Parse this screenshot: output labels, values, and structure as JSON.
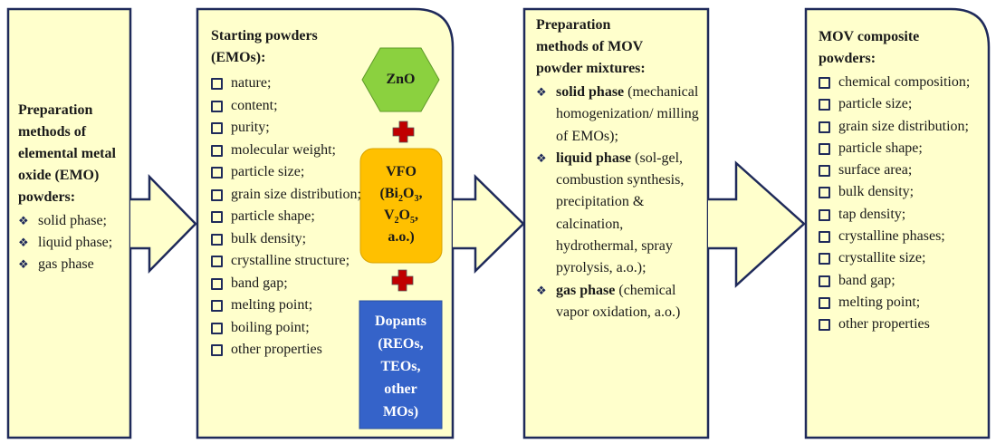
{
  "colors": {
    "box_fill": "#FFFFCC",
    "border": "#1F2A5A",
    "zno": "#8BD13F",
    "vfo": "#FFC000",
    "dopants": "#3563C9",
    "plus": "#C00000",
    "bullet": "#2B3A8A"
  },
  "box1": {
    "title": "Preparation methods of elemental metal oxide (EMO) powders:",
    "items": [
      "solid phase;",
      "liquid phase;",
      "gas phase"
    ]
  },
  "box2": {
    "title": "Starting powders (EMOs):",
    "items": [
      "nature;",
      "content;",
      "purity;",
      "molecular weight;",
      "particle size;",
      "grain size distribution;",
      "particle shape;",
      "bulk density;",
      "crystalline structure;",
      "band gap;",
      "melting point;",
      "boiling point;",
      "other properties"
    ],
    "zno": "ZnO",
    "vfo": {
      "line1": "VFO",
      "bi": "(Bi",
      "bi_sub": "2",
      "bi_o": "O",
      "bi_o_sub": "3",
      "bi_end": ",",
      "v": "V",
      "v_sub": "2",
      "v_o": "O",
      "v_o_sub": "5",
      "v_end": ",",
      "line4": "a.o.)"
    },
    "dopants": [
      "Dopants",
      "(REOs,",
      "TEOs,",
      "other",
      "MOs)"
    ]
  },
  "box3": {
    "title": "Preparation methods of MOV powder mixtures:",
    "items": [
      {
        "bold": "solid phase",
        "text": " (mechanical homogenization/ milling of EMOs);"
      },
      {
        "bold": "liquid phase",
        "text": " (sol-gel, combustion synthesis, precipitation & calcination, hydrothermal, spray pyrolysis, a.o.);"
      },
      {
        "bold": "gas phase",
        "text": " (chemical vapor oxidation, a.o.)"
      }
    ]
  },
  "box4": {
    "title": "MOV composite powders:",
    "items": [
      "chemical composition;",
      "particle size;",
      "grain size distribution;",
      "particle shape;",
      "surface area;",
      "bulk density;",
      "tap density;",
      "crystalline phases;",
      "crystallite size;",
      "band gap;",
      "melting point;",
      "other properties"
    ]
  }
}
